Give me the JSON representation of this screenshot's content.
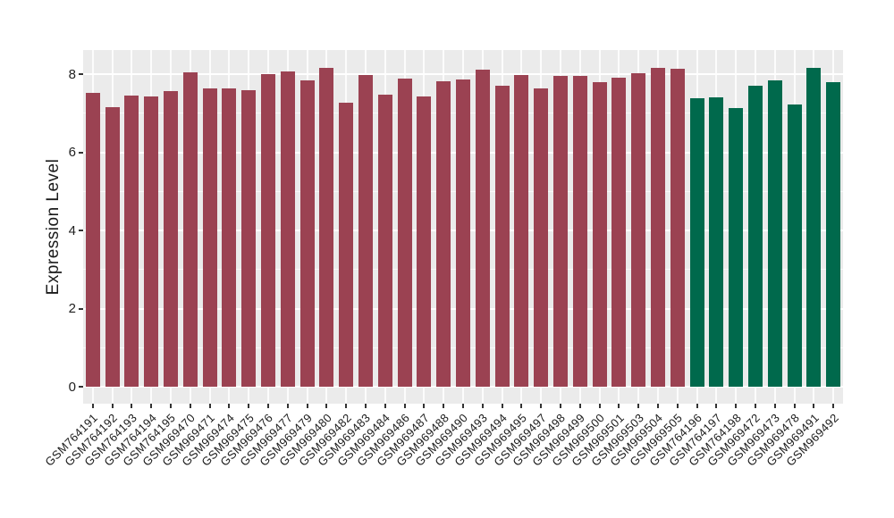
{
  "chart_data": {
    "type": "bar",
    "title": "",
    "xlabel": "",
    "ylabel": "Expression Level",
    "ylim": [
      0,
      8.62
    ],
    "yticks": [
      0,
      2,
      4,
      6,
      8
    ],
    "minor_yticks": [
      1,
      3,
      5,
      7
    ],
    "grid": "on",
    "legend_position": "none",
    "categories": [
      "GSM764191",
      "GSM764192",
      "GSM764193",
      "GSM764194",
      "GSM764195",
      "GSM969470",
      "GSM969471",
      "GSM969474",
      "GSM969475",
      "GSM969476",
      "GSM969477",
      "GSM969479",
      "GSM969480",
      "GSM969482",
      "GSM969483",
      "GSM969484",
      "GSM969486",
      "GSM969487",
      "GSM969488",
      "GSM969490",
      "GSM969493",
      "GSM969494",
      "GSM969495",
      "GSM969497",
      "GSM969498",
      "GSM969499",
      "GSM969500",
      "GSM969501",
      "GSM969503",
      "GSM969504",
      "GSM969505",
      "GSM764196",
      "GSM764197",
      "GSM764198",
      "GSM969472",
      "GSM969473",
      "GSM969478",
      "GSM969491",
      "GSM969492"
    ],
    "values": [
      7.53,
      7.16,
      7.45,
      7.42,
      7.56,
      8.05,
      7.63,
      7.63,
      7.59,
      7.99,
      8.07,
      7.84,
      8.16,
      7.27,
      7.98,
      7.47,
      7.88,
      7.42,
      7.82,
      7.87,
      8.11,
      7.7,
      7.97,
      7.64,
      7.95,
      7.95,
      7.8,
      7.91,
      8.02,
      8.17,
      8.13,
      7.38,
      7.4,
      7.14,
      7.7,
      7.83,
      7.22,
      8.16,
      7.79
    ],
    "groups": [
      "group1",
      "group1",
      "group1",
      "group1",
      "group1",
      "group1",
      "group1",
      "group1",
      "group1",
      "group1",
      "group1",
      "group1",
      "group1",
      "group1",
      "group1",
      "group1",
      "group1",
      "group1",
      "group1",
      "group1",
      "group1",
      "group1",
      "group1",
      "group1",
      "group1",
      "group1",
      "group1",
      "group1",
      "group1",
      "group1",
      "group1",
      "group2",
      "group2",
      "group2",
      "group2",
      "group2",
      "group2",
      "group2",
      "group2"
    ],
    "group_colors": {
      "group1": "#9B4252",
      "group2": "#00694C"
    }
  },
  "style": {
    "background": "#FFFFFF",
    "panel_bg": "#EBEBEB",
    "grid_color": "#FFFFFF",
    "tick_color": "#333333",
    "axis_text_color": "#1A1A1A"
  }
}
